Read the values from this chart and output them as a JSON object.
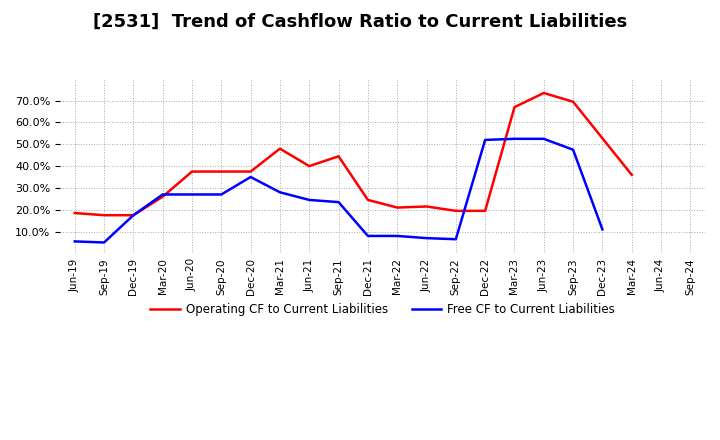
{
  "title": "[2531]  Trend of Cashflow Ratio to Current Liabilities",
  "x_labels": [
    "Jun-19",
    "Sep-19",
    "Dec-19",
    "Mar-20",
    "Jun-20",
    "Sep-20",
    "Dec-20",
    "Mar-21",
    "Jun-21",
    "Sep-21",
    "Dec-21",
    "Mar-22",
    "Jun-22",
    "Sep-22",
    "Dec-22",
    "Mar-23",
    "Jun-23",
    "Sep-23",
    "Dec-23",
    "Mar-24",
    "Jun-24",
    "Sep-24"
  ],
  "operating_cf": [
    0.185,
    0.175,
    0.175,
    0.26,
    0.375,
    0.375,
    0.375,
    0.48,
    0.4,
    0.445,
    0.245,
    0.21,
    0.215,
    0.195,
    0.195,
    0.67,
    0.735,
    0.695,
    null,
    0.36,
    null,
    null
  ],
  "free_cf": [
    0.055,
    0.05,
    0.175,
    0.27,
    0.27,
    0.27,
    0.35,
    0.28,
    0.245,
    0.235,
    0.08,
    0.08,
    0.07,
    0.065,
    0.52,
    0.525,
    0.525,
    0.475,
    0.11,
    null,
    null,
    null
  ],
  "operating_color": "#ff0000",
  "free_color": "#0000ff",
  "ylim": [
    0.0,
    0.8
  ],
  "yticks": [
    0.1,
    0.2,
    0.3,
    0.4,
    0.5,
    0.6,
    0.7
  ],
  "background_color": "#ffffff",
  "grid_color": "#aaaaaa",
  "title_fontsize": 13
}
